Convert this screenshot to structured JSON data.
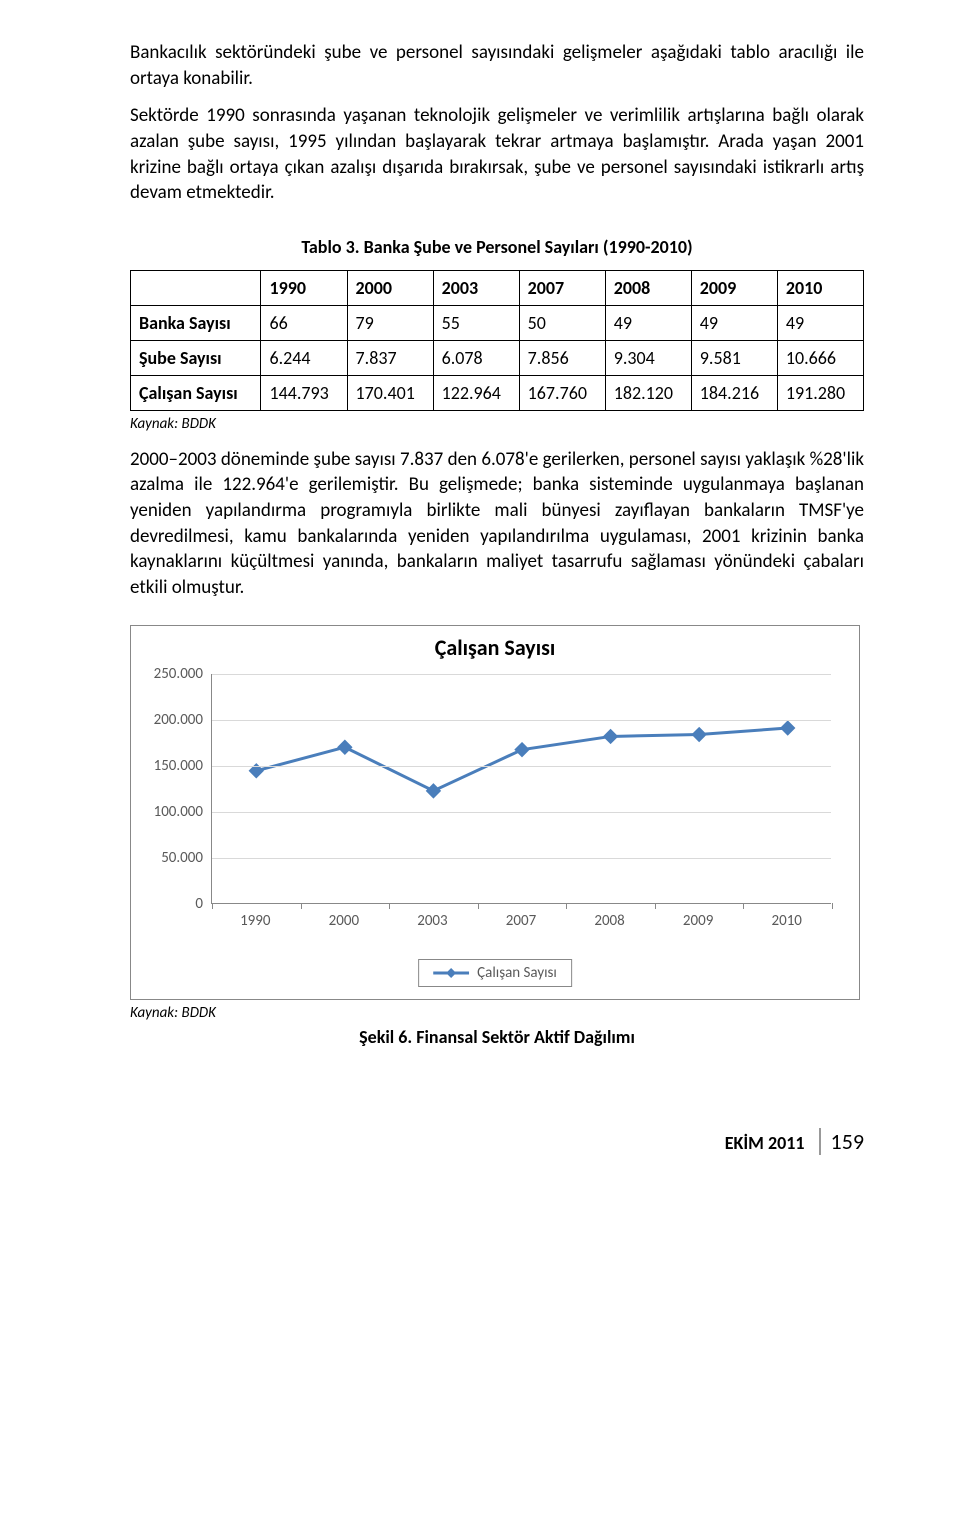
{
  "para1": "Bankacılık sektöründeki şube ve personel sayısındaki gelişmeler aşağıdaki tablo aracılığı ile ortaya konabilir.",
  "para2": "Sektörde 1990 sonrasında yaşanan teknolojik gelişmeler ve verimlilik artışlarına bağlı olarak azalan şube sayısı, 1995 yılından başlayarak tekrar artmaya başlamıştır. Arada yaşan 2001 krizine bağlı ortaya çıkan azalışı dışarıda bırakırsak, şube ve personel sayısındaki istikrarlı artış devam etmektedir.",
  "table": {
    "caption": "Tablo 3. Banka Şube ve Personel Sayıları (1990-2010)",
    "columns": [
      "",
      "1990",
      "2000",
      "2003",
      "2007",
      "2008",
      "2009",
      "2010"
    ],
    "rows": [
      {
        "label": "Banka Sayısı",
        "cells": [
          "66",
          "79",
          "55",
          "50",
          "49",
          "49",
          "49"
        ]
      },
      {
        "label": "Şube Sayısı",
        "cells": [
          "6.244",
          "7.837",
          "6.078",
          "7.856",
          "9.304",
          "9.581",
          "10.666"
        ]
      },
      {
        "label": "Çalışan Sayısı",
        "cells": [
          "144.793",
          "170.401",
          "122.964",
          "167.760",
          "182.120",
          "184.216",
          "191.280"
        ]
      }
    ],
    "source": "Kaynak: BDDK"
  },
  "para3": "2000–2003 döneminde şube sayısı 7.837 den 6.078'e gerilerken, personel sayısı yaklaşık %28'lik azalma ile 122.964'e gerilemiştir. Bu gelişmede; banka sisteminde uygulanmaya başlanan yeniden yapılandırma programıyla birlikte mali bünyesi zayıflayan bankaların TMSF'ye devredilmesi, kamu bankalarında yeniden yapılandırılma uygulaması, 2001 krizinin banka kaynaklarını küçültmesi yanında, bankaların maliyet tasarrufu sağlaması yönündeki çabaları etkili olmuştur.",
  "chart": {
    "type": "line",
    "title": "Çalışan Sayısı",
    "series_name": "Çalışan Sayısı",
    "categories": [
      "1990",
      "2000",
      "2003",
      "2007",
      "2008",
      "2009",
      "2010"
    ],
    "values": [
      144793,
      170401,
      122964,
      167760,
      182120,
      184216,
      191280
    ],
    "ylim": [
      0,
      250000
    ],
    "ytick_step": 50000,
    "ytick_labels": [
      "0",
      "50.000",
      "100.000",
      "150.000",
      "200.000",
      "250.000"
    ],
    "line_color": "#4a7ebb",
    "marker_fill": "#4a7ebb",
    "marker_size": 7,
    "grid_color": "#d9d9d9",
    "axis_color": "#888888",
    "background_color": "#ffffff",
    "title_fontsize": 22,
    "label_fontsize": 15,
    "line_width": 3
  },
  "chart_source": "Kaynak: BDDK",
  "figure_caption": "Şekil 6. Finansal Sektör Aktif Dağılımı",
  "footer": {
    "issue": "EKİM 2011",
    "page": "159"
  }
}
